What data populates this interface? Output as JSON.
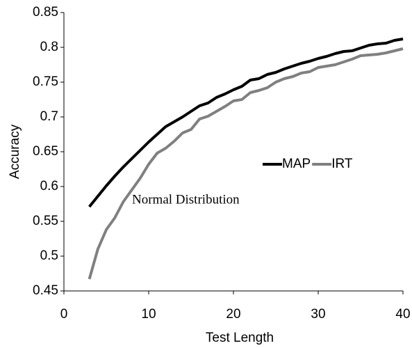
{
  "chart_data": {
    "type": "line",
    "x_label": "Test Length",
    "y_label": "Accuracy",
    "annotation": "Normal Distribution",
    "x": [
      3,
      4,
      5,
      6,
      7,
      8,
      9,
      10,
      11,
      12,
      13,
      14,
      15,
      16,
      17,
      18,
      19,
      20,
      21,
      22,
      23,
      24,
      25,
      26,
      27,
      28,
      29,
      30,
      31,
      32,
      33,
      34,
      35,
      36,
      37,
      38,
      39,
      40
    ],
    "series": [
      {
        "name": "MAP",
        "color": "#000000",
        "values": [
          0.571,
          0.586,
          0.601,
          0.615,
          0.628,
          0.64,
          0.652,
          0.664,
          0.675,
          0.686,
          0.693,
          0.7,
          0.708,
          0.716,
          0.72,
          0.728,
          0.733,
          0.739,
          0.744,
          0.753,
          0.755,
          0.761,
          0.764,
          0.769,
          0.773,
          0.777,
          0.78,
          0.784,
          0.787,
          0.791,
          0.794,
          0.795,
          0.799,
          0.803,
          0.805,
          0.806,
          0.81,
          0.812
        ]
      },
      {
        "name": "IRT",
        "color": "#808080",
        "values": [
          0.467,
          0.51,
          0.538,
          0.555,
          0.578,
          0.595,
          0.612,
          0.632,
          0.648,
          0.655,
          0.665,
          0.677,
          0.682,
          0.697,
          0.701,
          0.708,
          0.715,
          0.723,
          0.725,
          0.735,
          0.738,
          0.742,
          0.75,
          0.755,
          0.758,
          0.763,
          0.765,
          0.771,
          0.773,
          0.775,
          0.779,
          0.783,
          0.788,
          0.789,
          0.79,
          0.792,
          0.795,
          0.798
        ]
      }
    ],
    "xlim": [
      0,
      40
    ],
    "xticks": [
      0,
      10,
      20,
      30,
      40
    ],
    "ylim": [
      0.45,
      0.85
    ],
    "yticks": [
      0.45,
      0.5,
      0.55,
      0.6,
      0.65,
      0.7,
      0.75,
      0.8,
      0.85
    ],
    "legend": "right"
  }
}
